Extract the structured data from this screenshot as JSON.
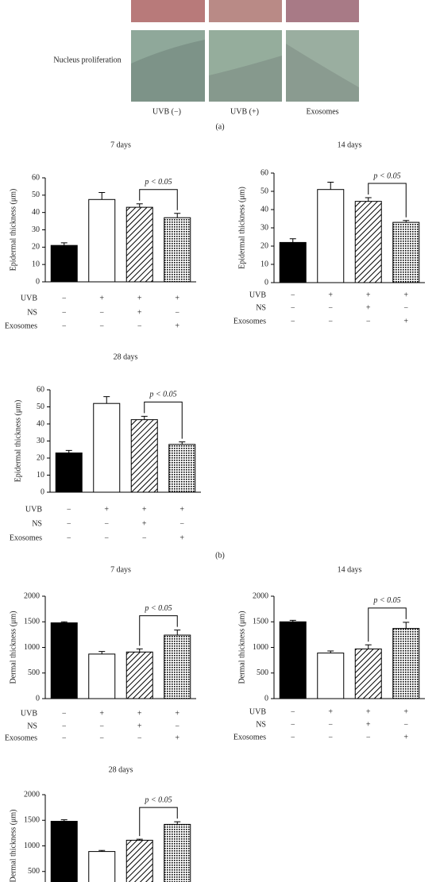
{
  "panel_a": {
    "row_label": "Nucleus proliferation",
    "columns": [
      "UVB (−)",
      "UVB (+)",
      "Exosomes"
    ],
    "label": "(a)"
  },
  "panel_b_label": "(b)",
  "chart_data": [
    {
      "type": "bar",
      "title": "7 days",
      "y_label": "Epidermal thickness (μm)",
      "values": [
        21,
        47.5,
        43,
        37
      ],
      "errors": [
        1.5,
        4,
        2,
        2.5
      ],
      "bar_fills": [
        "#000000",
        "#ffffff",
        "hatch",
        "dots"
      ],
      "ylim": [
        0,
        60
      ],
      "yticks": [
        0,
        10,
        20,
        30,
        40,
        50,
        60
      ],
      "annotation": "p < 0.05",
      "conditions": [
        {
          "name": "UVB",
          "marks": [
            "−",
            "+",
            "+",
            "+"
          ]
        },
        {
          "name": "NS",
          "marks": [
            "−",
            "−",
            "+",
            "−"
          ]
        },
        {
          "name": "Exosomes",
          "marks": [
            "−",
            "−",
            "−",
            "+"
          ]
        }
      ]
    },
    {
      "type": "bar",
      "title": "14 days",
      "y_label": "Epidermal thickness (μm)",
      "values": [
        22,
        51,
        44.5,
        33
      ],
      "errors": [
        2,
        4,
        2,
        1
      ],
      "bar_fills": [
        "#000000",
        "#ffffff",
        "hatch",
        "dots"
      ],
      "ylim": [
        0,
        60
      ],
      "yticks": [
        0,
        10,
        20,
        30,
        40,
        50,
        60
      ],
      "annotation": "p < 0.05",
      "conditions": [
        {
          "name": "UVB",
          "marks": [
            "−",
            "+",
            "+",
            "+"
          ]
        },
        {
          "name": "NS",
          "marks": [
            "−",
            "−",
            "+",
            "−"
          ]
        },
        {
          "name": "Exosomes",
          "marks": [
            "−",
            "−",
            "−",
            "+"
          ]
        }
      ]
    },
    {
      "type": "bar",
      "title": "28 days",
      "y_label": "Epidermal thickness (μm)",
      "values": [
        23,
        52,
        42.5,
        28
      ],
      "errors": [
        1.5,
        4,
        2,
        1.5
      ],
      "bar_fills": [
        "#000000",
        "#ffffff",
        "hatch",
        "dots"
      ],
      "ylim": [
        0,
        60
      ],
      "yticks": [
        0,
        10,
        20,
        30,
        40,
        50,
        60
      ],
      "annotation": "p < 0.05",
      "conditions": [
        {
          "name": "UVB",
          "marks": [
            "−",
            "+",
            "+",
            "+"
          ]
        },
        {
          "name": "NS",
          "marks": [
            "−",
            "−",
            "+",
            "−"
          ]
        },
        {
          "name": "Exosomes",
          "marks": [
            "−",
            "−",
            "−",
            "+"
          ]
        }
      ]
    },
    {
      "type": "bar",
      "title": "7 days",
      "y_label": "Dermal thickness (μm)",
      "values": [
        1480,
        870,
        910,
        1240
      ],
      "errors": [
        20,
        50,
        60,
        100
      ],
      "bar_fills": [
        "#000000",
        "#ffffff",
        "hatch",
        "dots"
      ],
      "ylim": [
        0,
        2000
      ],
      "yticks": [
        0,
        500,
        1000,
        1500,
        2000
      ],
      "annotation": "p < 0.05",
      "conditions": [
        {
          "name": "UVB",
          "marks": [
            "−",
            "+",
            "+",
            "+"
          ]
        },
        {
          "name": "NS",
          "marks": [
            "−",
            "−",
            "+",
            "−"
          ]
        },
        {
          "name": "Exosomes",
          "marks": [
            "−",
            "−",
            "−",
            "+"
          ]
        }
      ]
    },
    {
      "type": "bar",
      "title": "14 days",
      "y_label": "Dermal thickness (μm)",
      "values": [
        1500,
        890,
        970,
        1370
      ],
      "errors": [
        30,
        40,
        80,
        120
      ],
      "bar_fills": [
        "#000000",
        "#ffffff",
        "hatch",
        "dots"
      ],
      "ylim": [
        0,
        2000
      ],
      "yticks": [
        0,
        500,
        1000,
        1500,
        2000
      ],
      "annotation": "p < 0.05",
      "conditions": [
        {
          "name": "UVB",
          "marks": [
            "−",
            "+",
            "+",
            "+"
          ]
        },
        {
          "name": "NS",
          "marks": [
            "−",
            "−",
            "+",
            "−"
          ]
        },
        {
          "name": "Exosomes",
          "marks": [
            "−",
            "−",
            "−",
            "+"
          ]
        }
      ]
    },
    {
      "type": "bar",
      "title": "28 days",
      "y_label": "Dermal thickness (μm)",
      "values": [
        1480,
        890,
        1110,
        1420
      ],
      "errors": [
        30,
        20,
        20,
        50
      ],
      "bar_fills": [
        "#000000",
        "#ffffff",
        "hatch",
        "dots"
      ],
      "ylim": [
        0,
        2000
      ],
      "yticks": [
        500,
        1000,
        1500,
        2000
      ],
      "annotation": "p < 0.05"
    }
  ]
}
